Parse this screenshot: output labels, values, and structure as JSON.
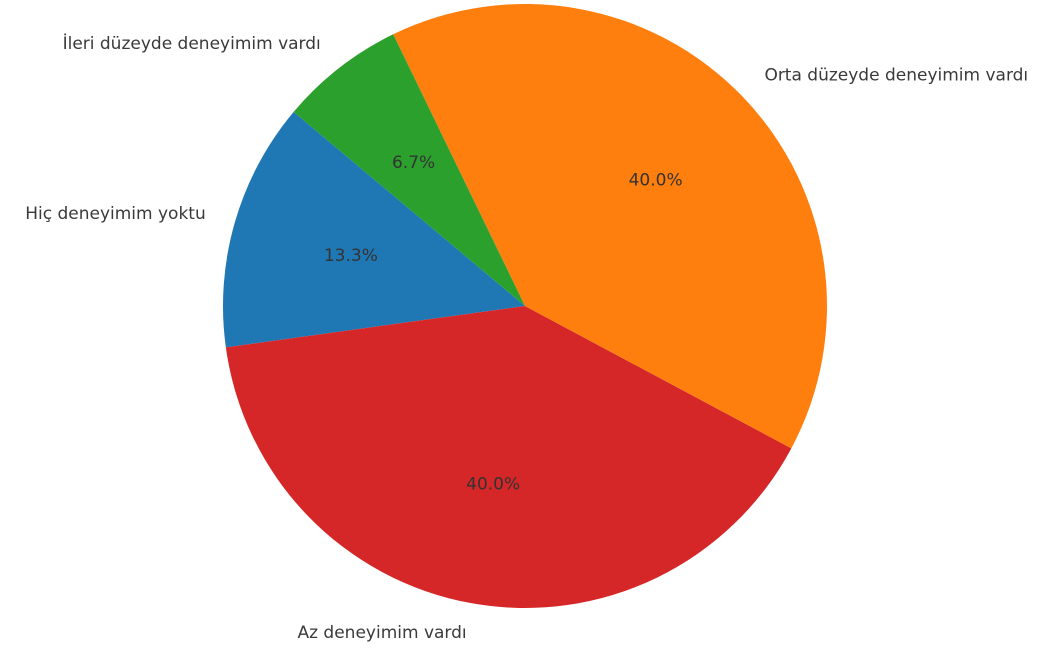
{
  "chart_data": {
    "type": "pie",
    "title": "",
    "start_angle_deg": 140,
    "direction": "counterclockwise",
    "slices": [
      {
        "label": "Hiç deneyimim yoktu",
        "value": 13.3,
        "pct_label": "13.3%",
        "color": "#1f77b4"
      },
      {
        "label": "Az deneyimim vardı",
        "value": 40.0,
        "pct_label": "40.0%",
        "color": "#d62728"
      },
      {
        "label": "Orta düzeyde deneyimim vardı",
        "value": 40.0,
        "pct_label": "40.0%",
        "color": "#ff7f0e"
      },
      {
        "label": "İleri düzeyde deneyimim vardı",
        "value": 6.7,
        "pct_label": "6.7%",
        "color": "#2ca02c"
      }
    ],
    "legend": "none"
  }
}
